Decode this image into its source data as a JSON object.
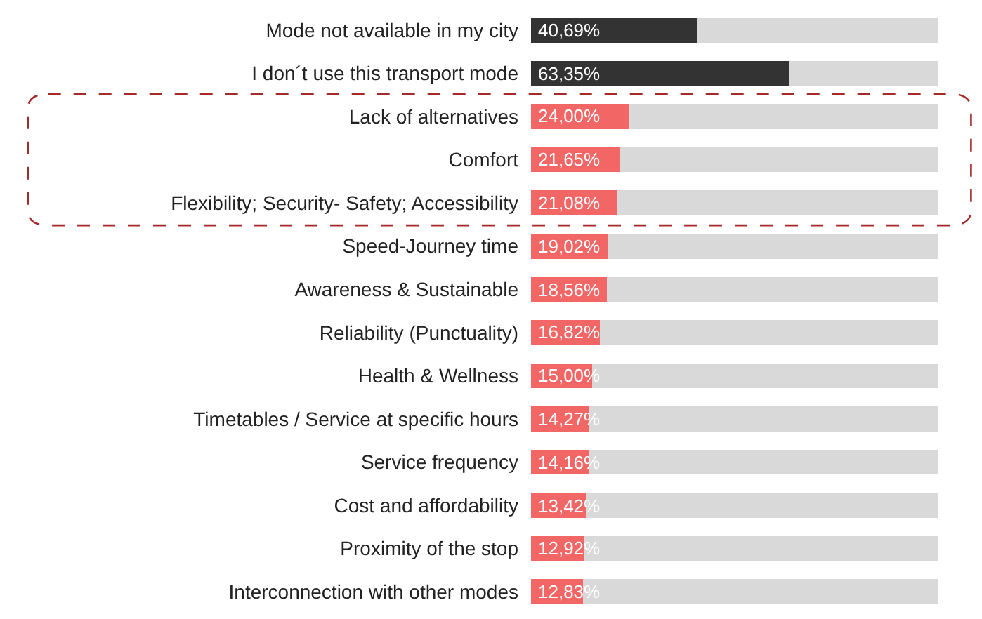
{
  "chart_data": {
    "type": "bar",
    "orientation": "horizontal",
    "stacked": true,
    "tick_labels": "y",
    "xlim": [
      0,
      100
    ],
    "categories": [
      "Mode not available in my city",
      "I don´t use this transport mode",
      "Lack of alternatives",
      "Comfort",
      "Flexibility; Security- Safety; Accessibility",
      "Speed-Journey time",
      "Awareness & Sustainable",
      "Reliability (Punctuality)",
      "Health & Wellness",
      "Timetables / Service at specific hours",
      "Service frequency",
      "Cost and affordability",
      "Proximity of the stop",
      "Interconnection with other modes"
    ],
    "series": [
      {
        "colors": [
          "#333333",
          "#333333",
          "#f26666",
          "#f26666",
          "#f26666",
          "#f26666",
          "#f26666",
          "#f26666",
          "#f26666",
          "#f26666",
          "#f26666",
          "#f26666",
          "#f26666",
          "#f26666"
        ],
        "values": [
          40.69,
          63.35,
          24.0,
          21.65,
          21.08,
          19.02,
          18.56,
          16.82,
          15.0,
          14.27,
          14.16,
          13.42,
          12.92,
          12.83
        ],
        "value_labels": [
          "40,69%",
          "63,35%",
          "24,00%",
          "21,65%",
          "21,08%",
          "19,02%",
          "18,56%",
          "16,82%",
          "15,00%",
          "14,27%",
          "14,16%",
          "13,42%",
          "12,92%",
          "12,83%"
        ]
      },
      {
        "color": "#d9d9d9",
        "values": [
          59.31,
          36.65,
          76.0,
          78.35,
          78.92,
          80.98,
          81.44,
          83.18,
          85.0,
          85.73,
          85.84,
          86.58,
          87.08,
          87.17
        ]
      }
    ]
  }
}
